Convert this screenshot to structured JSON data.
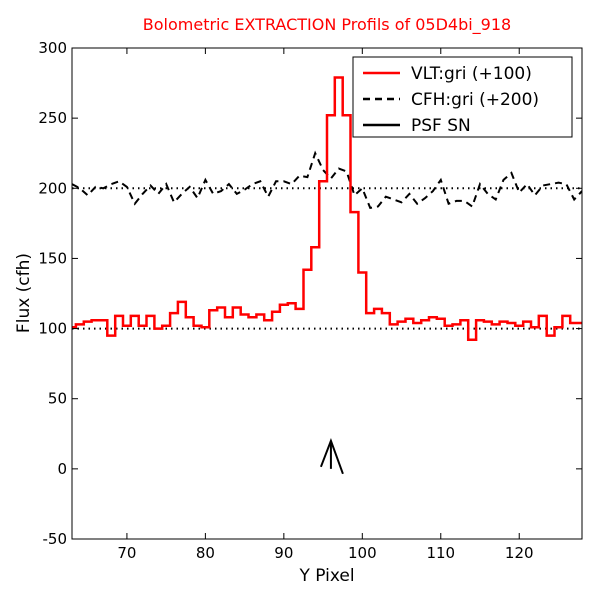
{
  "chart_data": {
    "type": "line",
    "title": "Bolometric EXTRACTION Profils of 05D4bi_918",
    "xlabel": "Y Pixel",
    "ylabel": "Flux (cfh)",
    "xlim": [
      63,
      128
    ],
    "ylim": [
      -50,
      300
    ],
    "xticks": [
      70,
      80,
      90,
      100,
      110,
      120
    ],
    "yticks": [
      -50,
      0,
      50,
      100,
      150,
      200,
      250,
      300
    ],
    "grid": false,
    "legend_position": "top-right",
    "colors": {
      "vlt": "#ff0000",
      "cfh": "#000000",
      "psf": "#000000",
      "title": "#ff0000"
    },
    "series": [
      {
        "name": "VLT:gri (+100)",
        "style": "steps-mid",
        "color": "#ff0000",
        "x": [
          63,
          64,
          65,
          66,
          67,
          68,
          69,
          70,
          71,
          72,
          73,
          74,
          75,
          76,
          77,
          78,
          79,
          80,
          81,
          82,
          83,
          84,
          85,
          86,
          87,
          88,
          89,
          90,
          91,
          92,
          93,
          94,
          95,
          96,
          97,
          98,
          99,
          100,
          101,
          102,
          103,
          104,
          105,
          106,
          107,
          108,
          109,
          110,
          111,
          112,
          113,
          114,
          115,
          116,
          117,
          118,
          119,
          120,
          121,
          122,
          123,
          124,
          125,
          126,
          127,
          128
        ],
        "y": [
          101,
          103,
          105,
          106,
          106,
          95,
          109,
          102,
          109,
          102,
          109,
          100,
          102,
          111,
          119,
          108,
          102,
          101,
          113,
          115,
          108,
          115,
          110,
          108,
          110,
          106,
          112,
          117,
          118,
          114,
          142,
          158,
          205,
          252,
          279,
          252,
          183,
          140,
          111,
          114,
          111,
          103,
          105,
          107,
          104,
          106,
          108,
          107,
          102,
          103,
          106,
          92,
          106,
          105,
          103,
          105,
          104,
          102,
          105,
          101,
          109,
          95,
          101,
          109,
          104,
          104
        ]
      },
      {
        "name": "CFH:gri (+200)",
        "style": "dashed",
        "color": "#000000",
        "x": [
          63,
          64,
          65,
          66,
          67,
          68,
          69,
          70,
          71,
          72,
          73,
          74,
          75,
          76,
          77,
          78,
          79,
          80,
          81,
          82,
          83,
          84,
          85,
          86,
          87,
          88,
          89,
          90,
          91,
          92,
          93,
          94,
          95,
          96,
          97,
          98,
          99,
          100,
          101,
          102,
          103,
          104,
          105,
          106,
          107,
          108,
          109,
          110,
          111,
          112,
          113,
          114,
          115,
          116,
          117,
          118,
          119,
          120,
          121,
          122,
          123,
          124,
          125,
          126,
          127,
          128
        ],
        "y": [
          203,
          200,
          195,
          201,
          200,
          203,
          205,
          201,
          189,
          196,
          202,
          196,
          203,
          190,
          196,
          201,
          193,
          206,
          196,
          198,
          203,
          196,
          199,
          203,
          205,
          194,
          205,
          205,
          203,
          209,
          208,
          225,
          213,
          207,
          214,
          212,
          195,
          200,
          186,
          187,
          194,
          192,
          190,
          196,
          189,
          193,
          198,
          206,
          189,
          191,
          191,
          187,
          203,
          196,
          192,
          206,
          211,
          197,
          203,
          195,
          202,
          203,
          204,
          203,
          192,
          198
        ]
      },
      {
        "name": "PSF SN",
        "style": "solid",
        "color": "#000000",
        "x": [],
        "y": []
      }
    ],
    "reference_lines": [
      100,
      200
    ],
    "annotation": {
      "type": "arrow",
      "x": 96,
      "y_tip": 20,
      "y_base": 0
    }
  }
}
